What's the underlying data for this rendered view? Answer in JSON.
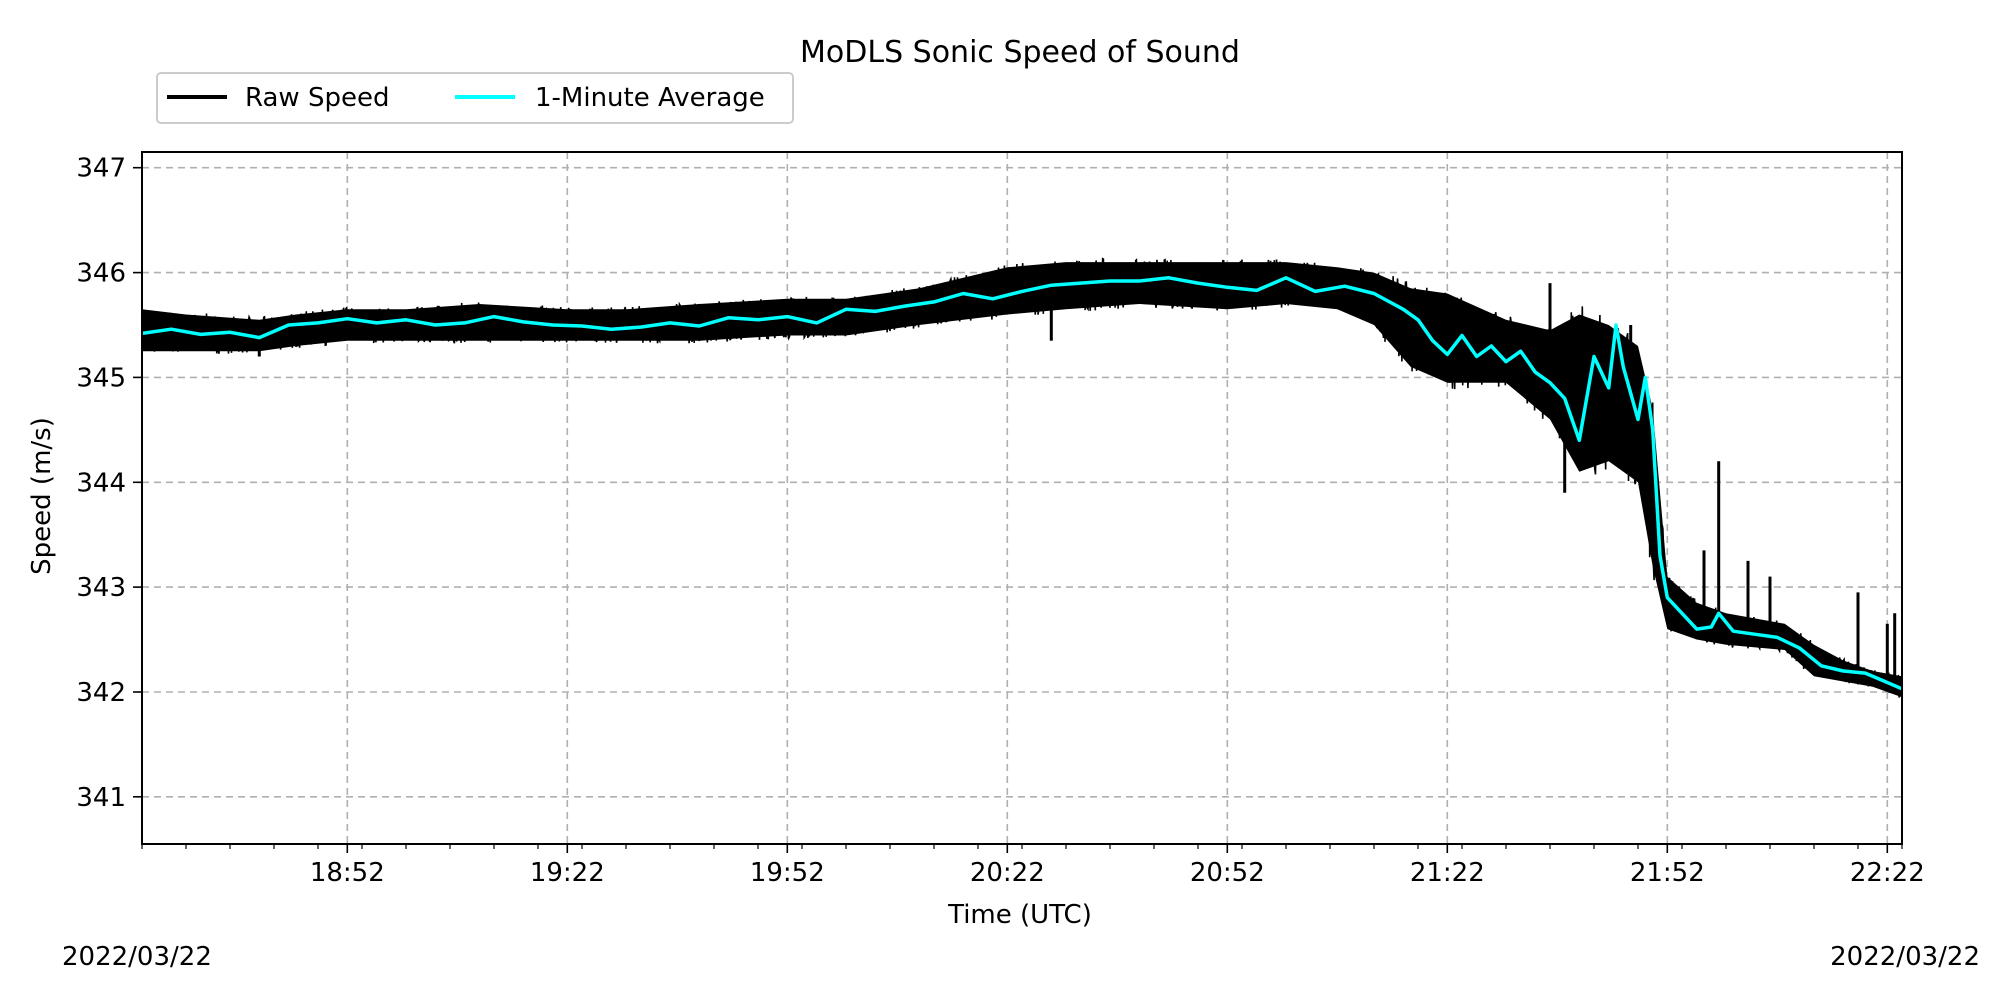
{
  "chart_data": {
    "type": "line",
    "title": "MoDLS Sonic Speed of Sound",
    "xlabel": "Time (UTC)",
    "ylabel": "Speed (m/s)",
    "date_start_label": "2022/03/22",
    "date_end_label": "2022/03/22",
    "x_range": [
      "18:24",
      "22:24"
    ],
    "ylim": [
      340.55,
      347.15
    ],
    "x_ticks": [
      "18:52",
      "19:22",
      "19:52",
      "20:22",
      "20:52",
      "21:22",
      "21:52",
      "22:22"
    ],
    "y_ticks": [
      341,
      342,
      343,
      344,
      345,
      346,
      347
    ],
    "grid": true,
    "legend": {
      "placement": "top-left, above axes",
      "columns": 2
    },
    "series": [
      {
        "name": "Raw Speed",
        "color": "#000000",
        "band": [
          [
            "18:24",
            345.25,
            345.65
          ],
          [
            "18:30",
            345.25,
            345.6
          ],
          [
            "18:40",
            345.25,
            345.55
          ],
          [
            "18:45",
            345.3,
            345.6
          ],
          [
            "18:52",
            345.35,
            345.65
          ],
          [
            "19:00",
            345.35,
            345.65
          ],
          [
            "19:10",
            345.35,
            345.7
          ],
          [
            "19:22",
            345.35,
            345.65
          ],
          [
            "19:30",
            345.35,
            345.65
          ],
          [
            "19:40",
            345.35,
            345.7
          ],
          [
            "19:52",
            345.4,
            345.75
          ],
          [
            "20:00",
            345.4,
            345.75
          ],
          [
            "20:10",
            345.5,
            345.85
          ],
          [
            "20:22",
            345.6,
            346.05
          ],
          [
            "20:30",
            345.65,
            346.1
          ],
          [
            "20:40",
            345.7,
            346.1
          ],
          [
            "20:52",
            345.65,
            346.1
          ],
          [
            "21:00",
            345.7,
            346.1
          ],
          [
            "21:07",
            345.65,
            346.05
          ],
          [
            "21:12",
            345.5,
            346.0
          ],
          [
            "21:17",
            345.1,
            345.85
          ],
          [
            "21:22",
            344.95,
            345.8
          ],
          [
            "21:30",
            344.95,
            345.55
          ],
          [
            "21:36",
            344.6,
            345.45
          ],
          [
            "21:40",
            344.1,
            345.6
          ],
          [
            "21:44",
            344.2,
            345.5
          ],
          [
            "21:48",
            344.0,
            345.3
          ],
          [
            "21:50",
            343.2,
            344.7
          ],
          [
            "21:52",
            342.6,
            343.1
          ],
          [
            "21:56",
            342.5,
            342.85
          ],
          [
            "22:00",
            342.45,
            342.75
          ],
          [
            "22:08",
            342.4,
            342.65
          ],
          [
            "22:12",
            342.15,
            342.45
          ],
          [
            "22:16",
            342.1,
            342.3
          ],
          [
            "22:20",
            342.05,
            342.2
          ],
          [
            "22:24",
            341.95,
            342.15
          ]
        ],
        "spikes": [
          [
            "21:36",
            345.9
          ],
          [
            "21:47",
            345.5
          ],
          [
            "21:59",
            344.2
          ],
          [
            "21:57",
            343.35
          ],
          [
            "22:03",
            343.25
          ],
          [
            "22:06",
            343.1
          ],
          [
            "22:18",
            342.95
          ],
          [
            "22:22",
            342.65
          ],
          [
            "22:23",
            342.75
          ],
          [
            "21:38",
            343.9
          ],
          [
            "21:49",
            343.95
          ],
          [
            "20:28",
            345.35
          ],
          [
            "18:40",
            345.2
          ]
        ]
      },
      {
        "name": "1-Minute Average",
        "color": "#00ffff",
        "points": [
          [
            "18:24",
            345.42
          ],
          [
            "18:28",
            345.46
          ],
          [
            "18:32",
            345.41
          ],
          [
            "18:36",
            345.43
          ],
          [
            "18:40",
            345.38
          ],
          [
            "18:44",
            345.5
          ],
          [
            "18:48",
            345.52
          ],
          [
            "18:52",
            345.56
          ],
          [
            "18:56",
            345.52
          ],
          [
            "19:00",
            345.55
          ],
          [
            "19:04",
            345.5
          ],
          [
            "19:08",
            345.52
          ],
          [
            "19:12",
            345.58
          ],
          [
            "19:16",
            345.53
          ],
          [
            "19:20",
            345.5
          ],
          [
            "19:24",
            345.49
          ],
          [
            "19:28",
            345.46
          ],
          [
            "19:32",
            345.48
          ],
          [
            "19:36",
            345.52
          ],
          [
            "19:40",
            345.49
          ],
          [
            "19:44",
            345.57
          ],
          [
            "19:48",
            345.55
          ],
          [
            "19:52",
            345.58
          ],
          [
            "19:56",
            345.52
          ],
          [
            "20:00",
            345.65
          ],
          [
            "20:04",
            345.63
          ],
          [
            "20:08",
            345.68
          ],
          [
            "20:12",
            345.72
          ],
          [
            "20:16",
            345.8
          ],
          [
            "20:20",
            345.75
          ],
          [
            "20:24",
            345.82
          ],
          [
            "20:28",
            345.88
          ],
          [
            "20:32",
            345.9
          ],
          [
            "20:36",
            345.92
          ],
          [
            "20:40",
            345.92
          ],
          [
            "20:44",
            345.95
          ],
          [
            "20:48",
            345.9
          ],
          [
            "20:52",
            345.86
          ],
          [
            "20:56",
            345.83
          ],
          [
            "21:00",
            345.95
          ],
          [
            "21:04",
            345.82
          ],
          [
            "21:08",
            345.87
          ],
          [
            "21:12",
            345.8
          ],
          [
            "21:16",
            345.65
          ],
          [
            "21:18",
            345.55
          ],
          [
            "21:20",
            345.35
          ],
          [
            "21:22",
            345.22
          ],
          [
            "21:24",
            345.4
          ],
          [
            "21:26",
            345.2
          ],
          [
            "21:28",
            345.3
          ],
          [
            "21:30",
            345.15
          ],
          [
            "21:32",
            345.25
          ],
          [
            "21:34",
            345.05
          ],
          [
            "21:36",
            344.95
          ],
          [
            "21:38",
            344.8
          ],
          [
            "21:40",
            344.4
          ],
          [
            "21:42",
            345.2
          ],
          [
            "21:44",
            344.9
          ],
          [
            "21:45",
            345.5
          ],
          [
            "21:46",
            345.1
          ],
          [
            "21:48",
            344.6
          ],
          [
            "21:49",
            345.0
          ],
          [
            "21:50",
            344.5
          ],
          [
            "21:51",
            343.3
          ],
          [
            "21:52",
            342.9
          ],
          [
            "21:54",
            342.75
          ],
          [
            "21:56",
            342.6
          ],
          [
            "21:58",
            342.62
          ],
          [
            "21:59",
            342.75
          ],
          [
            "22:01",
            342.58
          ],
          [
            "22:04",
            342.55
          ],
          [
            "22:07",
            342.52
          ],
          [
            "22:10",
            342.42
          ],
          [
            "22:13",
            342.25
          ],
          [
            "22:16",
            342.2
          ],
          [
            "22:19",
            342.18
          ],
          [
            "22:21",
            342.12
          ],
          [
            "22:24",
            342.03
          ]
        ]
      }
    ]
  }
}
